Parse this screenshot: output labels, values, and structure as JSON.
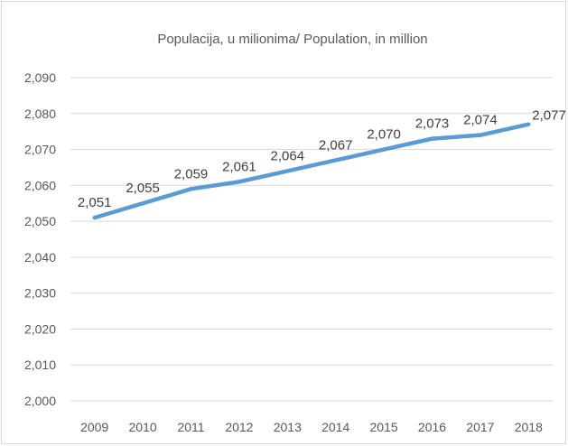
{
  "chart_data": {
    "type": "line",
    "title": "Populacija, u milionima/ Population, in million",
    "xlabel": "",
    "ylabel": "",
    "categories": [
      "2009",
      "2010",
      "2011",
      "2012",
      "2013",
      "2014",
      "2015",
      "2016",
      "2017",
      "2018"
    ],
    "series": [
      {
        "values": [
          2.051,
          2.055,
          2.059,
          2.061,
          2.064,
          2.067,
          2.07,
          2.073,
          2.074,
          2.077
        ],
        "labels": [
          "2,051",
          "2,055",
          "2,059",
          "2,061",
          "2,064",
          "2,067",
          "2,070",
          "2,073",
          "2,074",
          "2,077"
        ]
      }
    ],
    "ylim": [
      2.0,
      2.09
    ],
    "yticks": [
      2.0,
      2.01,
      2.02,
      2.03,
      2.04,
      2.05,
      2.06,
      2.07,
      2.08,
      2.09
    ],
    "ytick_labels": [
      "2,000",
      "2,010",
      "2,020",
      "2,030",
      "2,040",
      "2,050",
      "2,060",
      "2,070",
      "2,080",
      "2,090"
    ],
    "grid": true,
    "legend": "none",
    "line_color": "#5b9bd5"
  }
}
